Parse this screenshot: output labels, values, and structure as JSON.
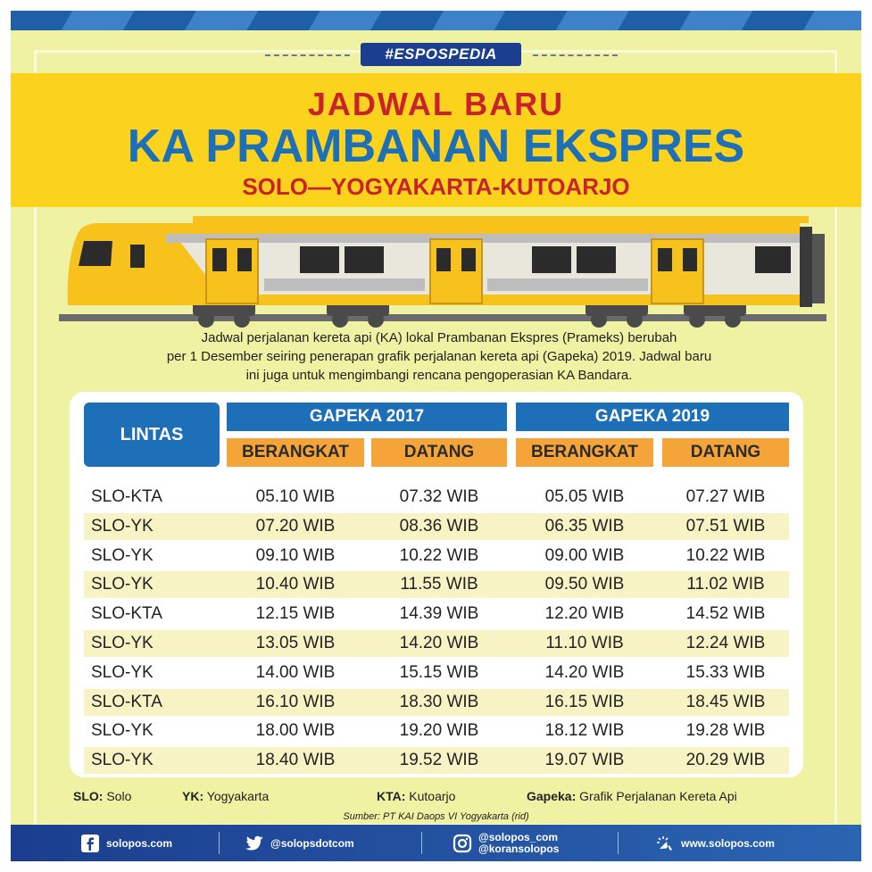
{
  "tag": "#ESPOSPEDIA",
  "title": {
    "line1": "JADWAL BARU",
    "line2": "KA PRAMBANAN EKSPRES",
    "line3": "SOLO—YOGYAKARTA-KUTOARJO"
  },
  "description": {
    "line1": "Jadwal perjalanan kereta api (KA) lokal Prambanan Ekspres (Prameks) berubah",
    "line2": "per 1 Desember seiring penerapan grafik perjalanan kereta api (Gapeka) 2019. Jadwal baru",
    "line3": "ini juga untuk mengimbangi rencana pengoperasian KA Bandara."
  },
  "table": {
    "col_lintas": "LINTAS",
    "group_2017": "GAPEKA 2017",
    "group_2019": "GAPEKA 2019",
    "berangkat": "BERANGKAT",
    "datang": "DATANG",
    "rows": [
      {
        "route": "SLO-KTA",
        "dep2017": "05.10 WIB",
        "arr2017": "07.32 WIB",
        "dep2019": "05.05 WIB",
        "arr2019": "07.27 WIB"
      },
      {
        "route": "SLO-YK",
        "dep2017": "07.20 WIB",
        "arr2017": "08.36 WIB",
        "dep2019": "06.35 WIB",
        "arr2019": "07.51 WIB"
      },
      {
        "route": "SLO-YK",
        "dep2017": "09.10 WIB",
        "arr2017": "10.22 WIB",
        "dep2019": "09.00 WIB",
        "arr2019": "10.22 WIB"
      },
      {
        "route": "SLO-YK",
        "dep2017": "10.40 WIB",
        "arr2017": "11.55 WIB",
        "dep2019": "09.50 WIB",
        "arr2019": "11.02 WIB"
      },
      {
        "route": "SLO-KTA",
        "dep2017": "12.15 WIB",
        "arr2017": "14.39 WIB",
        "dep2019": "12.20 WIB",
        "arr2019": "14.52 WIB"
      },
      {
        "route": "SLO-YK",
        "dep2017": "13.05 WIB",
        "arr2017": "14.20 WIB",
        "dep2019": "11.10 WIB",
        "arr2019": "12.24 WIB"
      },
      {
        "route": "SLO-YK",
        "dep2017": "14.00 WIB",
        "arr2017": "15.15 WIB",
        "dep2019": "14.20 WIB",
        "arr2019": "15.33 WIB"
      },
      {
        "route": "SLO-KTA",
        "dep2017": "16.10 WIB",
        "arr2017": "18.30 WIB",
        "dep2019": "16.15 WIB",
        "arr2019": "18.45 WIB"
      },
      {
        "route": "SLO-YK",
        "dep2017": "18.00 WIB",
        "arr2017": "19.20 WIB",
        "dep2019": "18.12 WIB",
        "arr2019": "19.28 WIB"
      },
      {
        "route": "SLO-YK",
        "dep2017": "18.40 WIB",
        "arr2017": "19.52 WIB",
        "dep2019": "19.07 WIB",
        "arr2019": "20.29 WIB"
      }
    ]
  },
  "legend": {
    "slo_key": "SLO:",
    "slo_val": "Solo",
    "yk_key": "YK:",
    "yk_val": "Yogyakarta",
    "kta_key": "KTA:",
    "kta_val": "Kutoarjo",
    "gapeka_key": "Gapeka:",
    "gapeka_val": "Grafik Perjalanan Kereta Api"
  },
  "source": "Sumber: PT KAI Daops VI Yogyakarta (rid)",
  "footer": {
    "facebook": "solopos.com",
    "twitter": "@solopsdotcom",
    "instagram_1": "@solopos_com",
    "instagram_2": "@koransolopos",
    "web": "www.solopos.com"
  },
  "colors": {
    "background": "#eef2a2",
    "title_band": "#fbd21c",
    "title_red": "#c8232c",
    "title_blue": "#1d6fb8",
    "header_blue": "#1d6fb8",
    "header_orange": "#f5a43a",
    "footer_blue": "#1b3e8e"
  }
}
